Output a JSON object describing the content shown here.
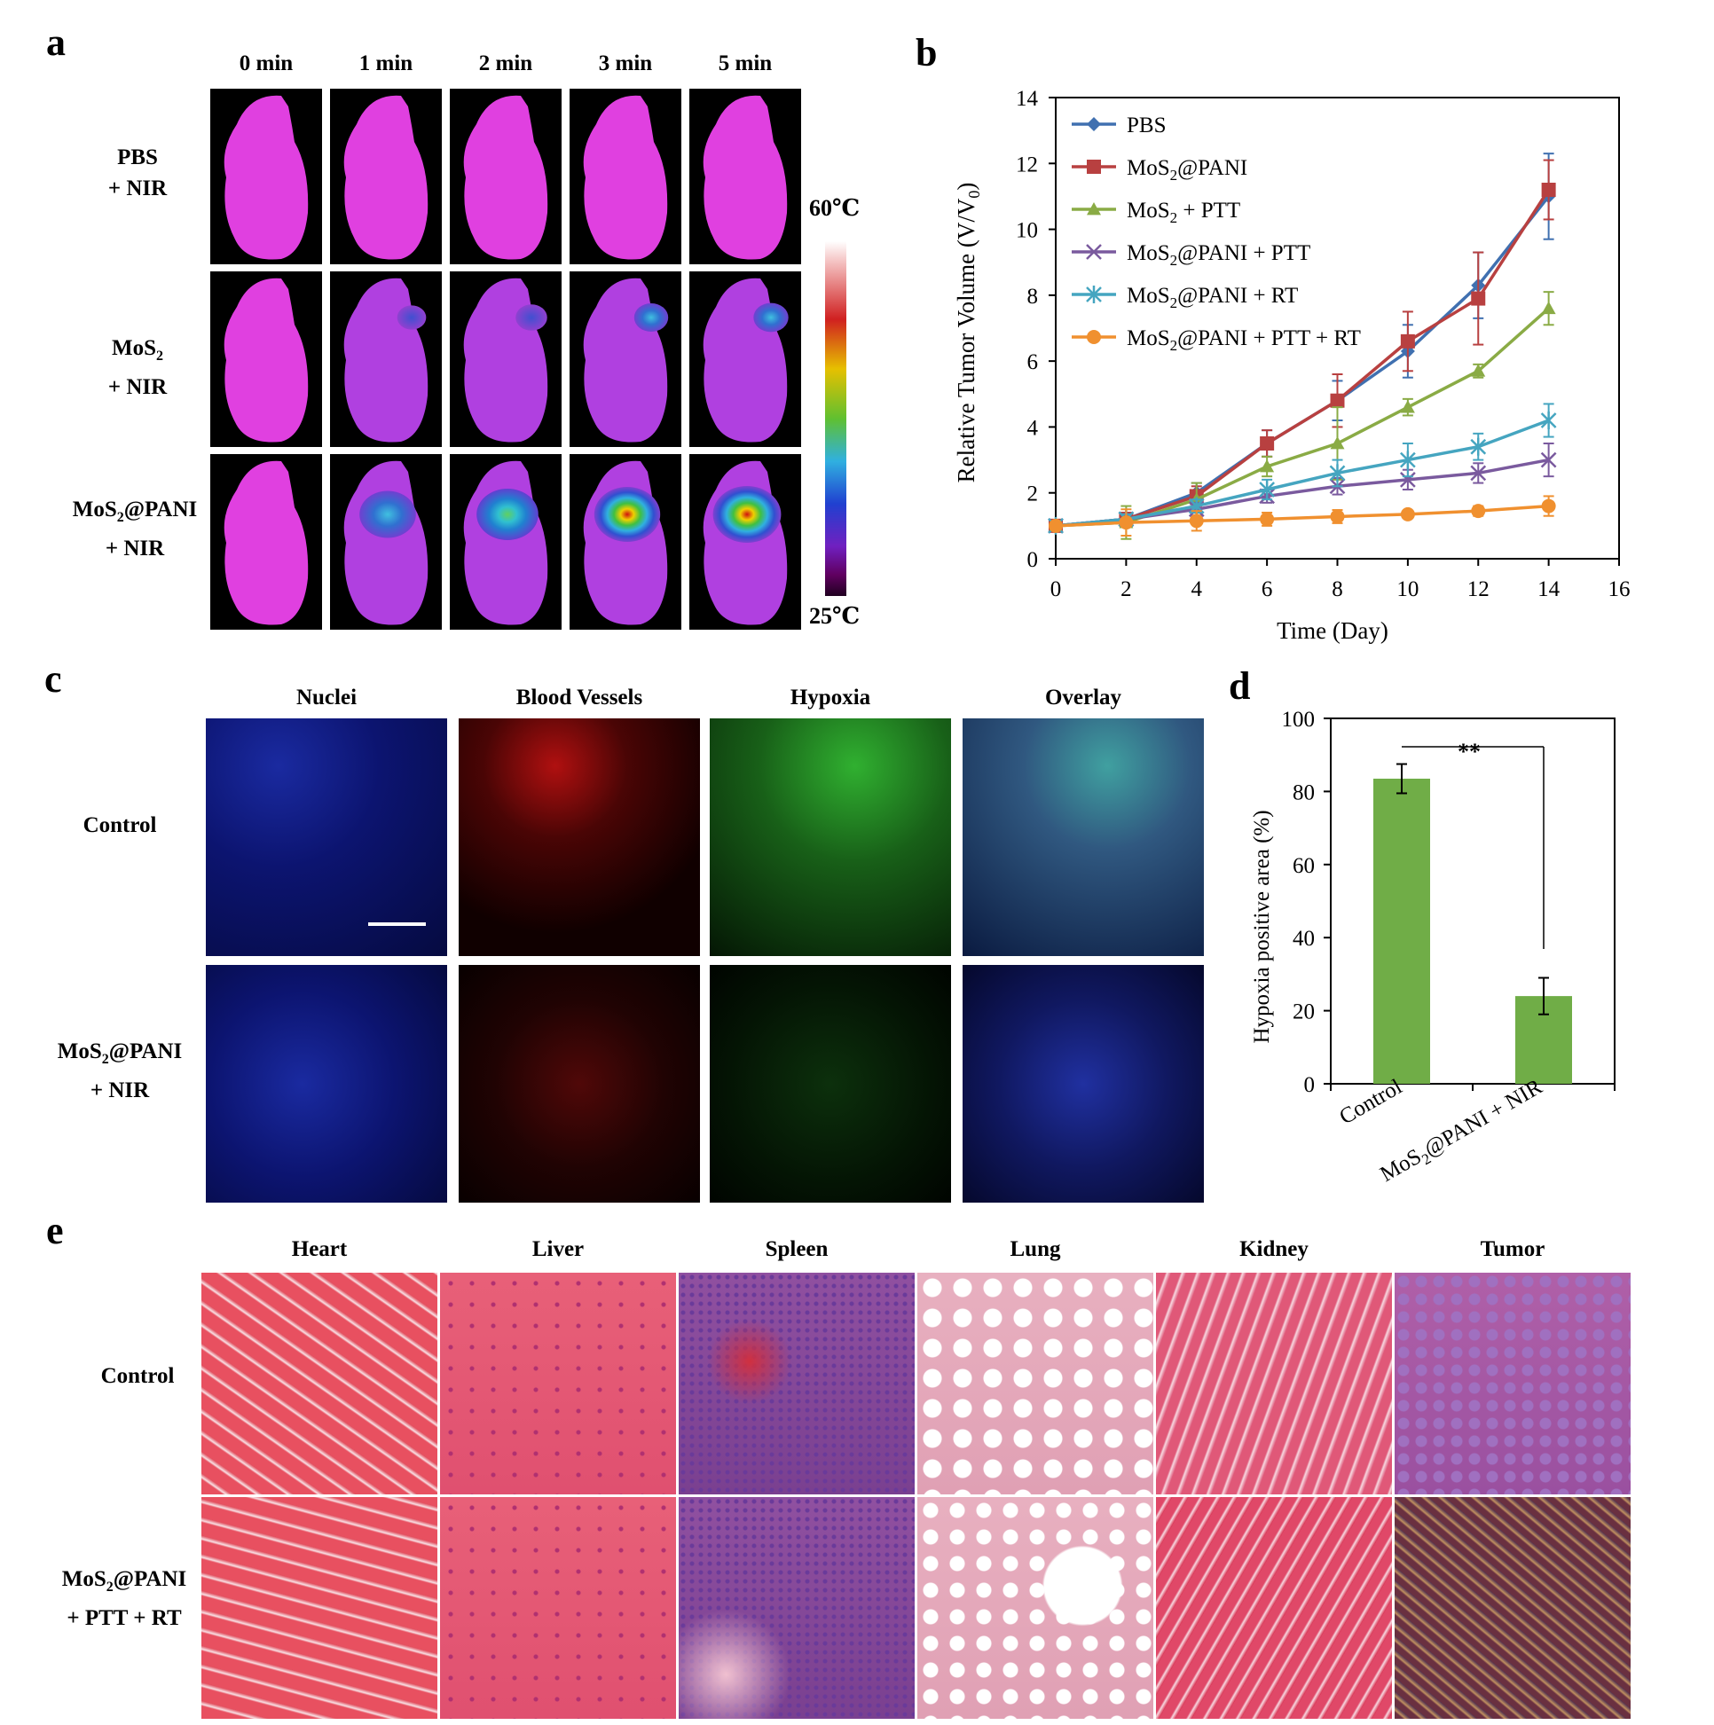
{
  "panel_labels": {
    "a": "a",
    "b": "b",
    "c": "c",
    "d": "d",
    "e": "e"
  },
  "panel_a": {
    "time_labels": [
      "0 min",
      "1 min",
      "2 min",
      "3 min",
      "5 min"
    ],
    "rows": [
      {
        "line1": "PBS",
        "line2": "+ NIR",
        "hotspot": [
          0,
          0,
          0,
          0,
          0
        ]
      },
      {
        "line1_main": "MoS",
        "line1_sub": "2",
        "line2": "+ NIR",
        "hotspot": [
          0,
          0.2,
          0.35,
          0.5,
          0.55
        ]
      },
      {
        "line1_main": "MoS",
        "line1_sub": "2",
        "line1_tail": "@PANI",
        "line2": "+ NIR",
        "hotspot": [
          0,
          0.45,
          0.7,
          0.9,
          1.0
        ]
      }
    ],
    "scale_max": "60℃",
    "scale_min": "25℃"
  },
  "chart_data": [
    {
      "type": "line",
      "ylabel_main": "Relative Tumor Volume (V/V",
      "ylabel_sub": "0",
      "ylabel_tail": ")",
      "xlabel": "Time (Day)",
      "xlim": [
        0,
        16
      ],
      "ylim": [
        0,
        14
      ],
      "xticks": [
        "0",
        "2",
        "4",
        "6",
        "8",
        "10",
        "12",
        "14",
        "16"
      ],
      "yticks": [
        "0",
        "2",
        "4",
        "6",
        "8",
        "10",
        "12",
        "14"
      ],
      "x": [
        0,
        2,
        4,
        6,
        8,
        10,
        12,
        14
      ],
      "series": [
        {
          "name": "PBS",
          "color": "#4070b0",
          "marker": "diamond",
          "values": [
            1.0,
            1.2,
            2.0,
            3.5,
            4.8,
            6.3,
            8.3,
            11.0
          ],
          "errors": [
            0.1,
            0.2,
            0.3,
            0.4,
            0.6,
            0.8,
            1.0,
            1.3
          ]
        },
        {
          "name": "MoS@PANI",
          "legend_main": "MoS",
          "legend_sub": "2",
          "legend_tail": "@PANI",
          "color": "#b84040",
          "marker": "square",
          "values": [
            1.0,
            1.2,
            1.9,
            3.5,
            4.8,
            6.6,
            7.9,
            11.2
          ],
          "errors": [
            0.1,
            0.2,
            0.3,
            0.4,
            0.8,
            0.9,
            1.4,
            0.9
          ]
        },
        {
          "name": "MoS + PTT",
          "legend_main": "MoS",
          "legend_sub": "2",
          "legend_tail": " + PTT",
          "color": "#8aab45",
          "marker": "triangle",
          "values": [
            1.0,
            1.1,
            1.8,
            2.8,
            3.5,
            4.6,
            5.7,
            7.6
          ],
          "errors": [
            0.1,
            0.5,
            0.5,
            0.3,
            1.1,
            0.25,
            0.2,
            0.5
          ]
        },
        {
          "name": "MoS@PANI + PTT",
          "legend_main": "MoS",
          "legend_sub": "2",
          "legend_tail": "@PANI + PTT",
          "color": "#7a5a9e",
          "marker": "x",
          "values": [
            1.0,
            1.2,
            1.5,
            1.9,
            2.2,
            2.4,
            2.6,
            3.0
          ],
          "errors": [
            0.1,
            0.15,
            0.2,
            0.2,
            0.25,
            0.3,
            0.3,
            0.5
          ]
        },
        {
          "name": "MoS@PANI + RT",
          "legend_main": "MoS",
          "legend_sub": "2",
          "legend_tail": "@PANI + RT",
          "color": "#45a5c0",
          "marker": "star",
          "values": [
            1.0,
            1.2,
            1.6,
            2.1,
            2.6,
            3.0,
            3.4,
            4.2
          ],
          "errors": [
            0.1,
            0.15,
            0.2,
            0.3,
            0.4,
            0.5,
            0.4,
            0.5
          ]
        },
        {
          "name": "MoS@PANI + PTT + RT",
          "legend_main": "MoS",
          "legend_sub": "2",
          "legend_tail": "@PANI + PTT + RT",
          "color": "#f0902f",
          "marker": "circle",
          "values": [
            1.0,
            1.1,
            1.15,
            1.2,
            1.28,
            1.35,
            1.45,
            1.6
          ],
          "errors": [
            0.1,
            0.4,
            0.3,
            0.2,
            0.2,
            0.1,
            0.15,
            0.3
          ]
        }
      ]
    },
    {
      "type": "bar",
      "ylabel": "Hypoxia positive area (%)",
      "ylim": [
        0,
        100
      ],
      "yticks": [
        "0",
        "20",
        "40",
        "60",
        "80",
        "100"
      ],
      "categories": [
        "Control",
        "MoS@PANI + NIR"
      ],
      "category_labels": [
        {
          "main": "Control"
        },
        {
          "main": "MoS",
          "sub": "2",
          "tail": "@PANI + NIR"
        }
      ],
      "values": [
        83.5,
        24
      ],
      "errors": [
        4,
        5
      ],
      "color": "#70ad47",
      "significance": "**"
    }
  ],
  "panel_c": {
    "headers": [
      "Nuclei",
      "Blood Vessels",
      "Hypoxia",
      "Overlay"
    ],
    "rows": [
      {
        "line1": "Control"
      },
      {
        "line1_main": "MoS",
        "line1_sub": "2",
        "line1_tail": "@PANI",
        "line2": "+ NIR"
      }
    ]
  },
  "panel_e": {
    "headers": [
      "Heart",
      "Liver",
      "Spleen",
      "Lung",
      "Kidney",
      "Tumor"
    ],
    "rows": [
      {
        "line1": "Control"
      },
      {
        "line1_main": "MoS",
        "line1_sub": "2",
        "line1_tail": "@PANI",
        "line2": "+ PTT + RT"
      }
    ]
  }
}
